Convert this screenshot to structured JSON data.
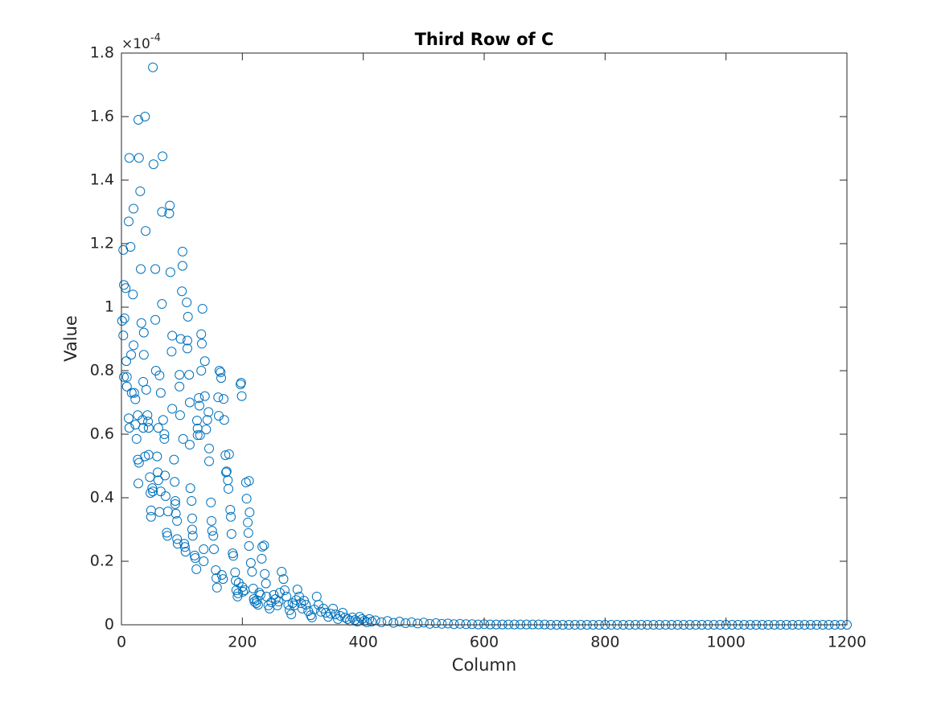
{
  "chart_data": {
    "type": "scatter",
    "title": "Third Row of C",
    "xlabel": "Column",
    "ylabel": "Value",
    "y_multiplier": "×10",
    "y_multiplier_exponent": "-4",
    "color": "#0072BD",
    "xlim": [
      0,
      1200
    ],
    "ylim": [
      0,
      1.8
    ],
    "xticks": [
      0,
      200,
      400,
      600,
      800,
      1000,
      1200
    ],
    "yticks": [
      0,
      0.2,
      0.4,
      0.6,
      0.8,
      1,
      1.2,
      1.4,
      1.6,
      1.8
    ],
    "x": [
      1,
      3,
      3,
      4,
      4,
      5,
      7,
      8,
      9,
      9,
      12,
      12,
      13,
      13,
      15,
      16,
      17,
      19,
      20,
      20,
      21,
      23,
      23,
      25,
      27,
      27,
      28,
      28,
      29,
      29,
      31,
      32,
      33,
      35,
      36,
      36,
      37,
      37,
      39,
      39,
      40,
      41,
      43,
      44,
      45,
      45,
      47,
      48,
      49,
      49,
      51,
      52,
      52,
      53,
      56,
      56,
      57,
      59,
      60,
      61,
      61,
      63,
      63,
      65,
      65,
      67,
      67,
      68,
      69,
      71,
      71,
      72,
      73,
      75,
      76,
      77,
      79,
      80,
      81,
      83,
      84,
      84,
      87,
      88,
      89,
      89,
      90,
      92,
      92,
      93,
      96,
      96,
      97,
      98,
      100,
      101,
      101,
      102,
      104,
      105,
      106,
      108,
      109,
      109,
      110,
      112,
      113,
      113,
      114,
      116,
      117,
      117,
      118,
      121,
      122,
      124,
      125,
      126,
      126,
      128,
      129,
      130,
      132,
      132,
      133,
      134,
      136,
      136,
      138,
      138,
      140,
      142,
      144,
      145,
      145,
      148,
      149,
      150,
      152,
      153,
      156,
      157,
      158,
      160,
      161,
      162,
      164,
      165,
      166,
      168,
      169,
      170,
      172,
      173,
      174,
      176,
      177,
      178,
      180,
      181,
      182,
      184,
      185,
      188,
      189,
      190,
      192,
      193,
      194,
      197,
      198,
      199,
      200,
      201,
      204,
      206,
      207,
      209,
      210,
      211,
      211,
      212,
      214,
      216,
      218,
      219,
      220,
      223,
      224,
      226,
      228,
      230,
      232,
      233,
      236,
      237,
      239,
      240,
      243,
      245,
      248,
      252,
      255,
      258,
      260,
      262,
      265,
      268,
      270,
      273,
      276,
      278,
      281,
      283,
      286,
      289,
      291,
      294,
      297,
      299,
      302,
      305,
      309,
      313,
      315,
      319,
      323,
      326,
      330,
      334,
      338,
      342,
      346,
      350,
      354,
      358,
      362,
      366,
      370,
      374,
      378,
      382,
      386,
      390,
      394,
      398,
      402,
      406,
      410,
      414,
      420,
      430,
      440,
      450,
      460,
      470,
      480,
      490,
      500,
      510,
      520,
      530,
      540,
      550,
      560,
      570,
      580,
      590,
      600,
      610,
      620,
      630,
      640,
      650,
      660,
      670,
      680,
      690,
      700,
      710,
      720,
      730,
      740,
      750,
      760,
      770,
      780,
      790,
      800,
      810,
      820,
      830,
      840,
      850,
      860,
      870,
      880,
      890,
      900,
      910,
      920,
      930,
      940,
      950,
      960,
      970,
      980,
      990,
      1000,
      1010,
      1020,
      1030,
      1040,
      1050,
      1060,
      1070,
      1080,
      1090,
      1100,
      1110,
      1120,
      1130,
      1140,
      1150,
      1160,
      1170,
      1180,
      1190,
      1200
    ],
    "y": [
      0.957,
      0.911,
      1.18,
      1.07,
      0.78,
      0.965,
      1.06,
      0.83,
      0.78,
      0.75,
      1.27,
      0.65,
      1.47,
      0.62,
      1.19,
      0.85,
      0.73,
      1.04,
      0.88,
      1.31,
      0.73,
      0.63,
      0.71,
      0.585,
      0.66,
      0.52,
      1.59,
      0.445,
      1.47,
      0.51,
      1.365,
      1.12,
      0.95,
      0.645,
      0.765,
      0.62,
      0.92,
      0.85,
      1.6,
      0.53,
      1.24,
      0.74,
      0.66,
      0.64,
      0.62,
      0.535,
      0.465,
      0.415,
      0.34,
      0.36,
      0.43,
      0.42,
      1.755,
      1.45,
      1.12,
      0.96,
      0.8,
      0.53,
      0.48,
      0.62,
      0.455,
      0.785,
      0.355,
      0.73,
      0.42,
      1.01,
      1.3,
      1.475,
      0.645,
      0.6,
      0.585,
      0.47,
      0.405,
      0.29,
      0.28,
      0.357,
      1.295,
      1.32,
      1.11,
      0.86,
      0.91,
      0.68,
      0.52,
      0.45,
      0.39,
      0.38,
      0.35,
      0.327,
      0.27,
      0.255,
      0.787,
      0.75,
      0.66,
      0.9,
      1.05,
      1.175,
      1.13,
      0.585,
      0.255,
      0.245,
      0.23,
      1.015,
      0.87,
      0.895,
      0.97,
      0.787,
      0.7,
      0.567,
      0.43,
      0.39,
      0.335,
      0.3,
      0.28,
      0.218,
      0.21,
      0.175,
      0.643,
      0.618,
      0.597,
      0.714,
      0.69,
      0.597,
      0.8,
      0.915,
      0.885,
      0.995,
      0.238,
      0.2,
      0.83,
      0.72,
      0.615,
      0.645,
      0.67,
      0.555,
      0.515,
      0.385,
      0.327,
      0.296,
      0.28,
      0.238,
      0.172,
      0.147,
      0.117,
      0.716,
      0.658,
      0.8,
      0.795,
      0.777,
      0.157,
      0.144,
      0.711,
      0.645,
      0.534,
      0.48,
      0.483,
      0.455,
      0.428,
      0.537,
      0.362,
      0.34,
      0.286,
      0.225,
      0.217,
      0.165,
      0.139,
      0.109,
      0.089,
      0.099,
      0.132,
      0.757,
      0.762,
      0.72,
      0.119,
      0.104,
      0.109,
      0.448,
      0.397,
      0.322,
      0.289,
      0.248,
      0.453,
      0.354,
      0.195,
      0.167,
      0.114,
      0.081,
      0.073,
      0.068,
      0.078,
      0.063,
      0.101,
      0.094,
      0.208,
      0.246,
      0.25,
      0.16,
      0.13,
      0.089,
      0.061,
      0.051,
      0.071,
      0.094,
      0.081,
      0.061,
      0.073,
      0.101,
      0.167,
      0.144,
      0.109,
      0.089,
      0.063,
      0.046,
      0.033,
      0.068,
      0.061,
      0.078,
      0.111,
      0.089,
      0.068,
      0.051,
      0.076,
      0.063,
      0.043,
      0.03,
      0.023,
      0.048,
      0.089,
      0.063,
      0.041,
      0.051,
      0.038,
      0.025,
      0.035,
      0.051,
      0.033,
      0.018,
      0.028,
      0.038,
      0.023,
      0.018,
      0.013,
      0.023,
      0.015,
      0.01,
      0.025,
      0.018,
      0.013,
      0.008,
      0.018,
      0.01,
      0.014,
      0.008,
      0.012,
      0.006,
      0.01,
      0.005,
      0.008,
      0.004,
      0.007,
      0.003,
      0.005,
      0.003,
      0.004,
      0.002,
      0.003,
      0.002,
      0.002,
      0.001,
      0.002,
      0.001,
      0.001,
      0.001,
      0.001,
      0.001,
      0.001,
      0.001,
      0.001,
      0.001,
      0.001,
      0,
      0,
      0,
      0,
      0,
      0,
      0,
      0,
      0,
      0,
      0,
      0,
      0,
      0,
      0,
      0,
      0,
      0,
      0,
      0,
      0,
      0,
      0,
      0,
      0,
      0,
      0,
      0,
      0,
      0,
      0,
      0,
      0,
      0,
      0,
      0,
      0,
      0,
      0,
      0,
      0,
      0,
      0,
      0,
      0,
      0,
      0,
      0,
      0,
      0
    ]
  }
}
